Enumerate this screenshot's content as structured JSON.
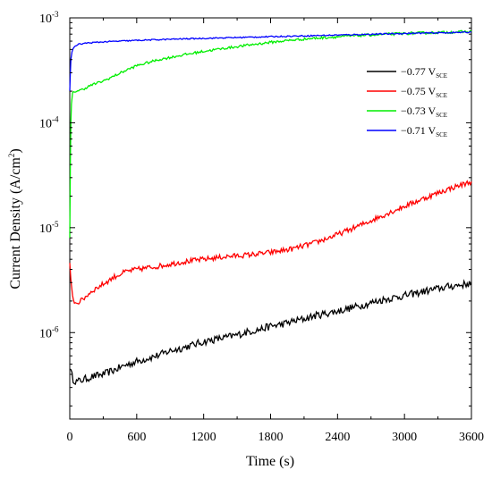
{
  "chart_data": {
    "type": "line",
    "xlabel": "Time (s)",
    "ylabel": "Current Density (A/cm²)",
    "ylabel_parts": {
      "base": "Current Density (A/cm",
      "exp": "2",
      "tail": ")"
    },
    "xlim": [
      0,
      3600
    ],
    "ylim": [
      1.5e-07,
      0.001
    ],
    "y_scale": "log",
    "x_ticks": [
      0,
      600,
      1200,
      1800,
      2400,
      3000,
      3600
    ],
    "y_ticks": [
      {
        "value": 1e-06,
        "base": "10",
        "exp": "-6"
      },
      {
        "value": 1e-05,
        "base": "10",
        "exp": "-5"
      },
      {
        "value": 0.0001,
        "base": "10",
        "exp": "-4"
      },
      {
        "value": 0.001,
        "base": "10",
        "exp": "-3"
      }
    ],
    "legend_position": "top-right",
    "series": [
      {
        "name": "−0.77 V_SCE",
        "label": "−0.77 V",
        "sub": "SCE",
        "color": "#000000",
        "noise": 0.035,
        "points": [
          [
            0,
            4.8e-07
          ],
          [
            10,
            4.2e-07
          ],
          [
            30,
            3.6e-07
          ],
          [
            60,
            3.4e-07
          ],
          [
            100,
            3.5e-07
          ],
          [
            200,
            3.8e-07
          ],
          [
            300,
            4e-07
          ],
          [
            400,
            4.4e-07
          ],
          [
            500,
            4.9e-07
          ],
          [
            600,
            5.3e-07
          ],
          [
            700,
            5.7e-07
          ],
          [
            800,
            6.1e-07
          ],
          [
            900,
            6.7e-07
          ],
          [
            1000,
            7.1e-07
          ],
          [
            1100,
            7.6e-07
          ],
          [
            1200,
            8.2e-07
          ],
          [
            1300,
            8.6e-07
          ],
          [
            1400,
            9e-07
          ],
          [
            1500,
            9.5e-07
          ],
          [
            1600,
            1.02e-06
          ],
          [
            1700,
            1.07e-06
          ],
          [
            1800,
            1.15e-06
          ],
          [
            1900,
            1.2e-06
          ],
          [
            2000,
            1.28e-06
          ],
          [
            2100,
            1.35e-06
          ],
          [
            2200,
            1.45e-06
          ],
          [
            2400,
            1.6e-06
          ],
          [
            2600,
            1.8e-06
          ],
          [
            2800,
            2.05e-06
          ],
          [
            3000,
            2.25e-06
          ],
          [
            3200,
            2.5e-06
          ],
          [
            3400,
            2.75e-06
          ],
          [
            3600,
            2.95e-06
          ]
        ]
      },
      {
        "name": "−0.75 V_SCE",
        "label": "−0.75 V",
        "sub": "SCE",
        "color": "#ff0000",
        "noise": 0.025,
        "points": [
          [
            0,
            4.5e-06
          ],
          [
            10,
            3e-06
          ],
          [
            25,
            2.2e-06
          ],
          [
            50,
            1.9e-06
          ],
          [
            100,
            2e-06
          ],
          [
            200,
            2.5e-06
          ],
          [
            300,
            2.9e-06
          ],
          [
            400,
            3.4e-06
          ],
          [
            500,
            3.8e-06
          ],
          [
            600,
            4e-06
          ],
          [
            800,
            4.3e-06
          ],
          [
            1000,
            4.7e-06
          ],
          [
            1200,
            5e-06
          ],
          [
            1400,
            5.3e-06
          ],
          [
            1600,
            5.5e-06
          ],
          [
            1800,
            5.8e-06
          ],
          [
            2000,
            6.3e-06
          ],
          [
            2200,
            7.2e-06
          ],
          [
            2400,
            8.6e-06
          ],
          [
            2600,
            1.05e-05
          ],
          [
            2800,
            1.3e-05
          ],
          [
            3000,
            1.6e-05
          ],
          [
            3200,
            1.95e-05
          ],
          [
            3400,
            2.35e-05
          ],
          [
            3600,
            2.75e-05
          ]
        ]
      },
      {
        "name": "−0.73 V_SCE",
        "label": "−0.73 V",
        "sub": "SCE",
        "color": "#00ee00",
        "noise": 0.012,
        "points": [
          [
            0,
            8e-06
          ],
          [
            3,
            2e-05
          ],
          [
            6,
            5e-05
          ],
          [
            10,
            0.0001
          ],
          [
            15,
            0.00015
          ],
          [
            25,
            0.00019
          ],
          [
            50,
            0.0002
          ],
          [
            100,
            0.000205
          ],
          [
            200,
            0.00023
          ],
          [
            300,
            0.00025
          ],
          [
            400,
            0.00028
          ],
          [
            500,
            0.000315
          ],
          [
            600,
            0.00035
          ],
          [
            800,
            0.0004
          ],
          [
            1000,
            0.00044
          ],
          [
            1200,
            0.00048
          ],
          [
            1400,
            0.000515
          ],
          [
            1600,
            0.00055
          ],
          [
            1800,
            0.000585
          ],
          [
            2000,
            0.000615
          ],
          [
            2200,
            0.00064
          ],
          [
            2400,
            0.00066
          ],
          [
            2600,
            0.00068
          ],
          [
            2800,
            0.000695
          ],
          [
            3000,
            0.00071
          ],
          [
            3200,
            0.00072
          ],
          [
            3400,
            0.00073
          ],
          [
            3600,
            0.00074
          ]
        ]
      },
      {
        "name": "−0.71 V_SCE",
        "label": "−0.71 V",
        "sub": "SCE",
        "color": "#0000ff",
        "noise": 0.006,
        "points": [
          [
            0,
            0.0002
          ],
          [
            5,
            0.0003
          ],
          [
            10,
            0.0004
          ],
          [
            20,
            0.00048
          ],
          [
            40,
            0.00053
          ],
          [
            80,
            0.00056
          ],
          [
            150,
            0.000575
          ],
          [
            300,
            0.00059
          ],
          [
            600,
            0.00061
          ],
          [
            1000,
            0.00063
          ],
          [
            1500,
            0.00065
          ],
          [
            2000,
            0.00067
          ],
          [
            2500,
            0.00069
          ],
          [
            3000,
            0.00071
          ],
          [
            3600,
            0.00073
          ]
        ]
      }
    ]
  }
}
